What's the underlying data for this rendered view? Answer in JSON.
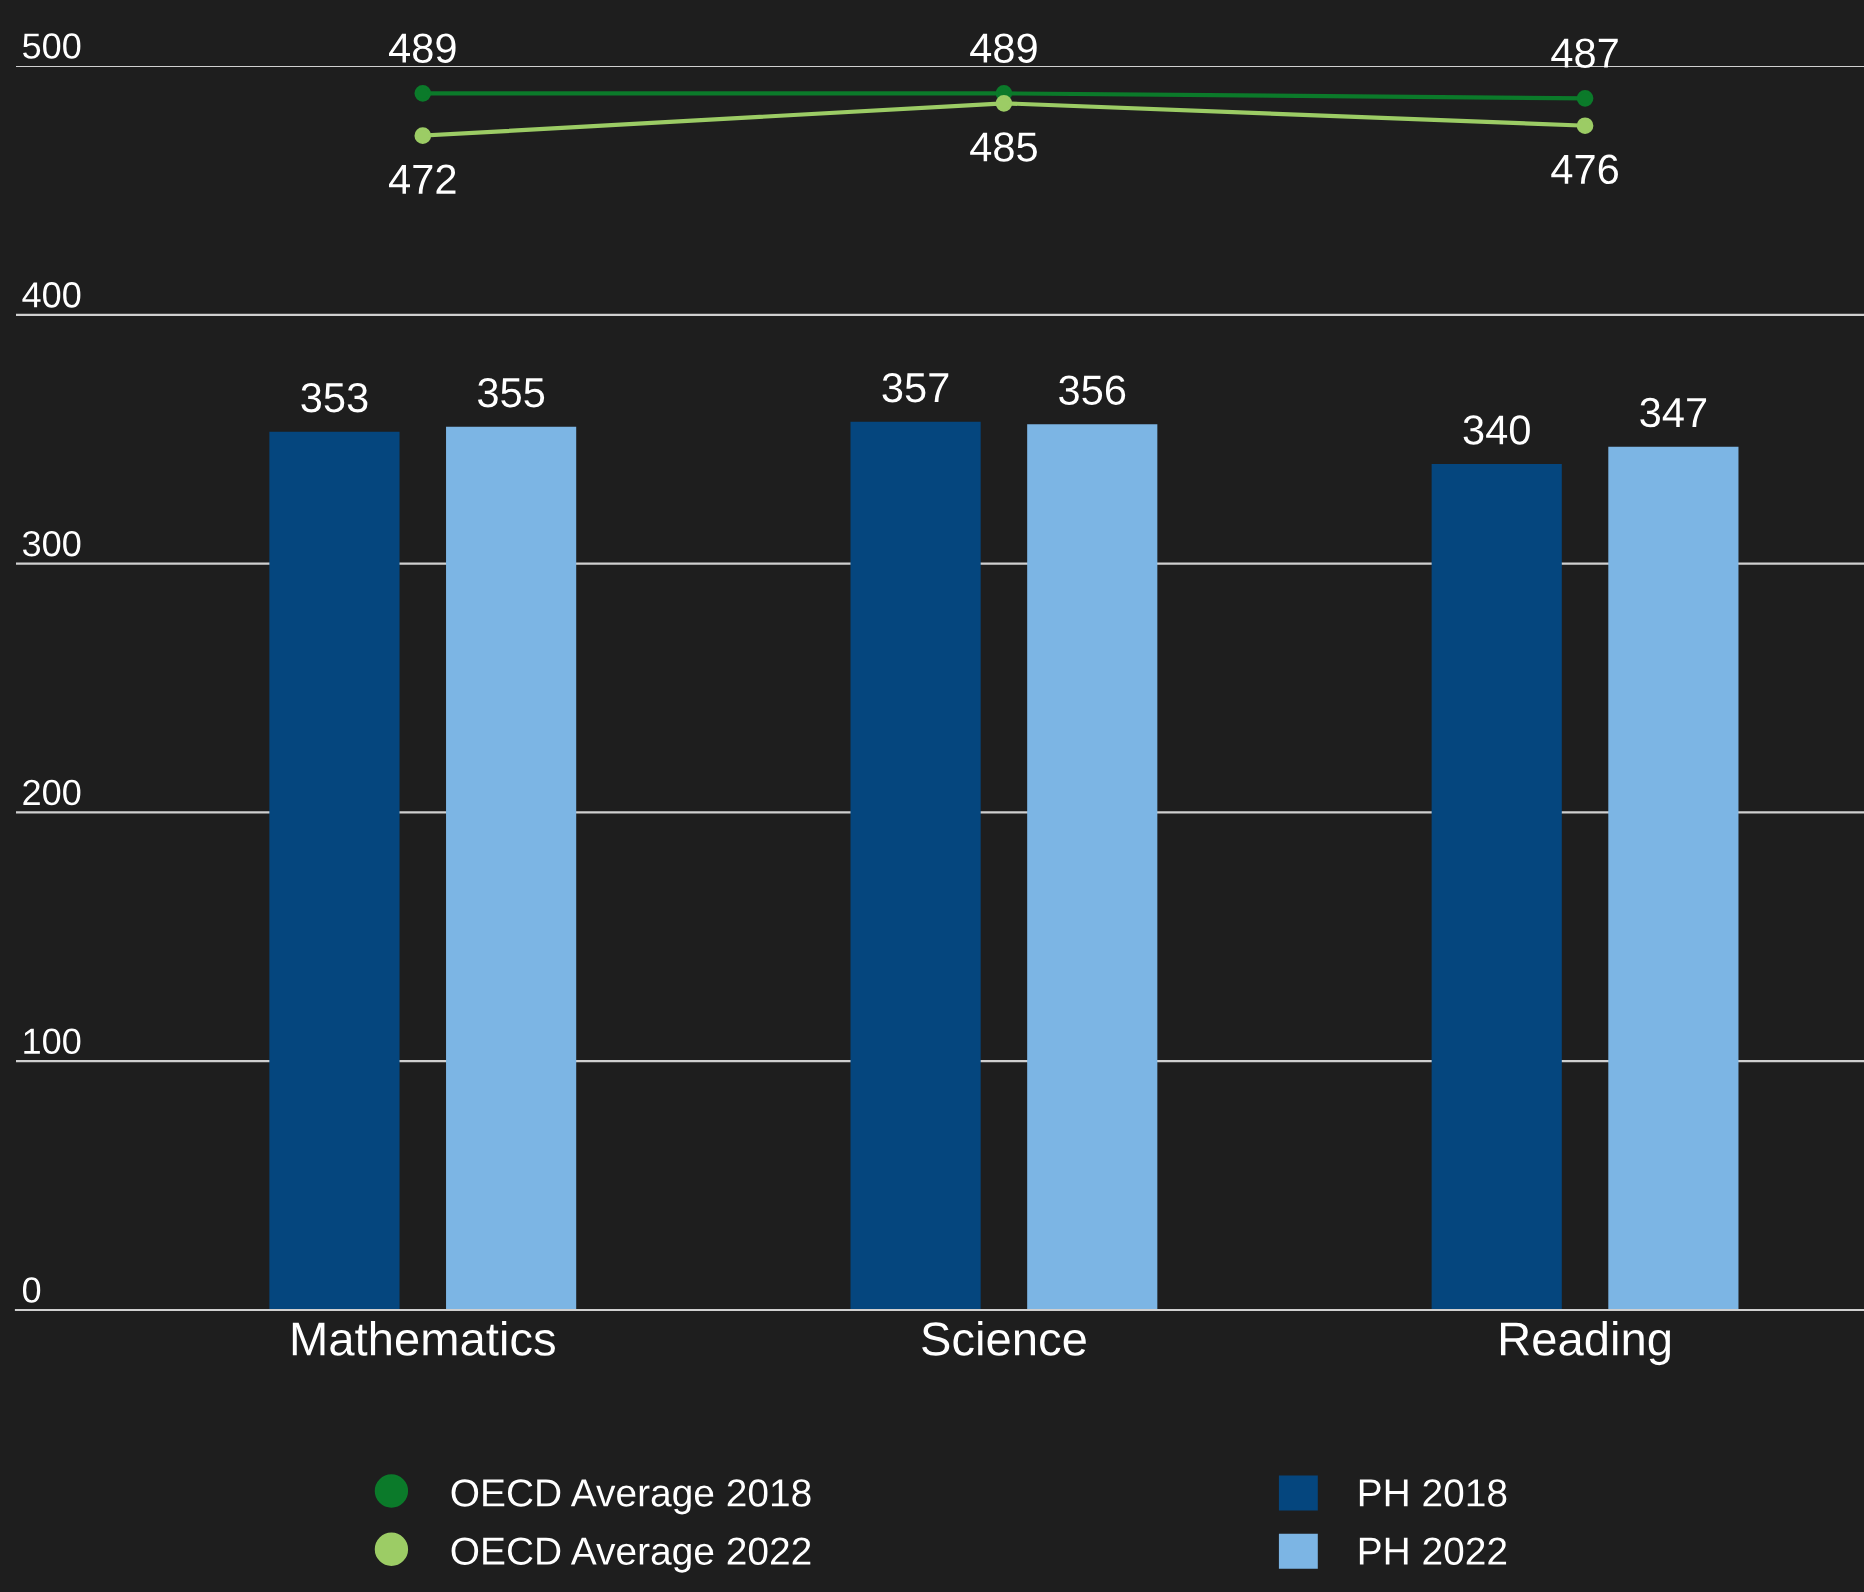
{
  "chart_data": {
    "type": "bar",
    "categories": [
      "Mathematics",
      "Science",
      "Reading"
    ],
    "series": [
      {
        "name": "OECD Average 2018",
        "type": "line",
        "color": "#0b7a2a",
        "values": [
          489,
          489,
          487
        ]
      },
      {
        "name": "OECD Average 2022",
        "type": "line",
        "color": "#9ccc65",
        "values": [
          472,
          485,
          476
        ]
      },
      {
        "name": "PH 2018",
        "color": "#05467e",
        "values": [
          353,
          357,
          340
        ]
      },
      {
        "name": "PH 2022",
        "color": "#7cb5e4",
        "values": [
          355,
          356,
          347
        ]
      }
    ],
    "ylim": [
      0,
      500
    ],
    "yticks": [
      0,
      100,
      200,
      300,
      400,
      500
    ],
    "grid": "y",
    "legend": "bottom",
    "marker": "circle",
    "line_style": "solid",
    "data_labels": true
  }
}
